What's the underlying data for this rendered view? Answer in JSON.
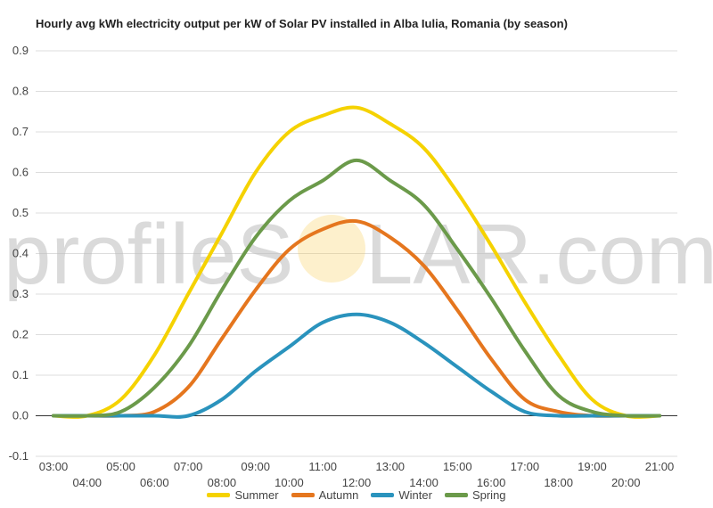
{
  "chart_data": {
    "type": "line",
    "title": "Hourly avg kWh electricity output per kW of Solar PV installed in Alba Iulia, Romania (by season)",
    "xlabel": "",
    "ylabel": "",
    "x": [
      "03:00",
      "04:00",
      "05:00",
      "06:00",
      "07:00",
      "08:00",
      "09:00",
      "10:00",
      "11:00",
      "12:00",
      "13:00",
      "14:00",
      "15:00",
      "16:00",
      "17:00",
      "18:00",
      "19:00",
      "20:00",
      "21:00"
    ],
    "ylim": [
      -0.1,
      0.9
    ],
    "y_ticks": [
      -0.1,
      0.0,
      0.1,
      0.2,
      0.3,
      0.4,
      0.5,
      0.6,
      0.7,
      0.8,
      0.9
    ],
    "y_tick_labels": [
      "-0.1",
      "0.0",
      "0.1",
      "0.2",
      "0.3",
      "0.4",
      "0.5",
      "0.6",
      "0.7",
      "0.8",
      "0.9"
    ],
    "grid": true,
    "legend_position": "bottom",
    "series": [
      {
        "name": "Summer",
        "color": "#f5d200",
        "values": [
          0.0,
          0.0,
          0.04,
          0.15,
          0.3,
          0.45,
          0.6,
          0.7,
          0.74,
          0.76,
          0.72,
          0.66,
          0.55,
          0.42,
          0.28,
          0.15,
          0.04,
          0.0,
          0.0
        ]
      },
      {
        "name": "Autumn",
        "color": "#e5761e",
        "values": [
          0.0,
          0.0,
          0.0,
          0.01,
          0.07,
          0.19,
          0.31,
          0.41,
          0.46,
          0.48,
          0.44,
          0.37,
          0.26,
          0.14,
          0.04,
          0.01,
          0.0,
          0.0,
          0.0
        ]
      },
      {
        "name": "Winter",
        "color": "#2a93bd",
        "values": [
          0.0,
          0.0,
          0.0,
          0.0,
          0.0,
          0.04,
          0.11,
          0.17,
          0.23,
          0.25,
          0.23,
          0.18,
          0.12,
          0.06,
          0.01,
          0.0,
          0.0,
          0.0,
          0.0
        ]
      },
      {
        "name": "Spring",
        "color": "#6b9a4a",
        "values": [
          0.0,
          0.0,
          0.01,
          0.07,
          0.17,
          0.31,
          0.44,
          0.53,
          0.58,
          0.63,
          0.58,
          0.52,
          0.41,
          0.29,
          0.16,
          0.05,
          0.01,
          0.0,
          0.0
        ]
      }
    ]
  },
  "watermark": {
    "left": "profileS",
    "right": "LAR.com",
    "sun_color": "#f7c948"
  }
}
